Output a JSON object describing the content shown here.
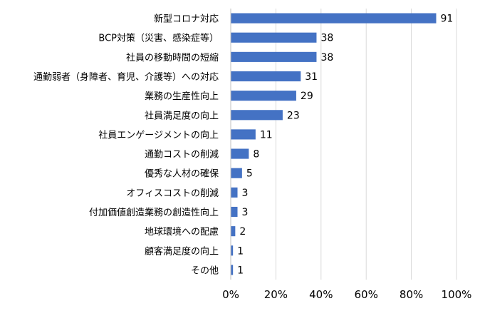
{
  "chart_data": {
    "type": "bar",
    "orientation": "horizontal",
    "categories": [
      "新型コロナ対応",
      "BCP対策（災害、感染症等）",
      "社員の移動時間の短縮",
      "通勤弱者（身障者、育児、介護等）への対応",
      "業務の生産性向上",
      "社員満足度の向上",
      "社員エンゲージメントの向上",
      "通勤コストの削減",
      "優秀な人材の確保",
      "オフィスコストの削減",
      "付加価値創造業務の創造性向上",
      "地球環境への配慮",
      "顧客満足度の向上",
      "その他"
    ],
    "values": [
      91,
      38,
      38,
      31,
      29,
      23,
      11,
      8,
      5,
      3,
      3,
      2,
      1,
      1
    ],
    "xlim": [
      0,
      100
    ],
    "xticks": [
      "0%",
      "20%",
      "40%",
      "60%",
      "80%",
      "100%"
    ],
    "title": "",
    "xlabel": "",
    "ylabel": "",
    "grid": "vertical",
    "legend": "none",
    "bar_color": "#4472C4"
  }
}
